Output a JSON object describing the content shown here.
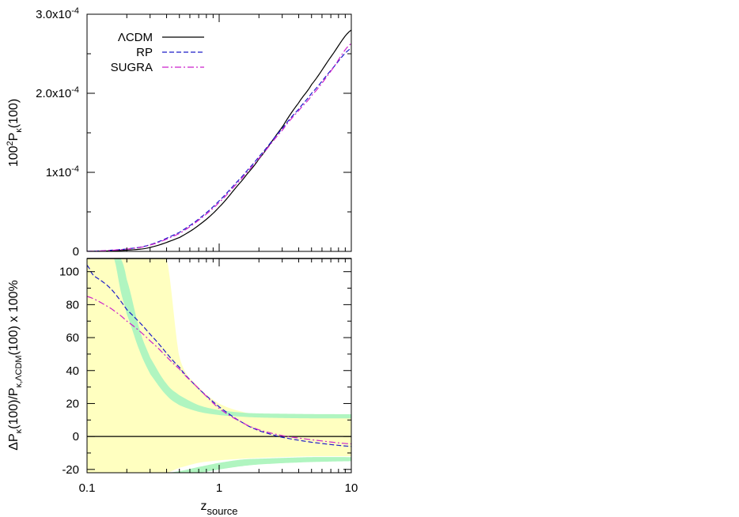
{
  "chart_data": [
    {
      "type": "line",
      "panel": "top",
      "xscale": "log",
      "xlim": [
        0.1,
        10
      ],
      "ylim": [
        0,
        0.0003
      ],
      "ylabel": {
        "base": "100",
        "sup": "2",
        "main": "P",
        "sub": "κ",
        "tail": "(100)"
      },
      "yticks": [
        {
          "value": 0,
          "label": "0"
        },
        {
          "value": 0.0001,
          "label": "1x10",
          "exp": "-4"
        },
        {
          "value": 0.0002,
          "label": "2.0x10",
          "exp": "-4"
        },
        {
          "value": 0.0003,
          "label": "3.0x10",
          "exp": "-4"
        }
      ],
      "legend_position": "top-left",
      "series": [
        {
          "name": "ΛCDM",
          "color": "#000000",
          "dash": "solid",
          "x": [
            0.1,
            0.2,
            0.3,
            0.5,
            0.7,
            1.0,
            1.5,
            2.0,
            3.0,
            4.0,
            5.0,
            7.0,
            10.0
          ],
          "y": [
            0.0,
            1.5e-06,
            5e-06,
            1.75e-05,
            3.3e-05,
            5.6e-05,
            9e-05,
            0.000117,
            0.000157,
            0.000188,
            0.000211,
            0.000246,
            0.00028
          ]
        },
        {
          "name": "RP",
          "color": "#1c1cc8",
          "dash": "dashed",
          "x": [
            0.1,
            0.2,
            0.3,
            0.5,
            0.7,
            1.0,
            1.5,
            2.0,
            3.0,
            4.0,
            5.0,
            7.0,
            10.0
          ],
          "y": [
            0.0,
            3e-06,
            8.5e-06,
            2.4e-05,
            4.1e-05,
            6.4e-05,
            9.5e-05,
            0.00012,
            0.000155,
            0.00018,
            0.0002,
            0.000229,
            0.000257
          ]
        },
        {
          "name": "SUGRA",
          "color": "#cc22cc",
          "dash": "dashdot",
          "x": [
            0.1,
            0.2,
            0.3,
            0.5,
            0.7,
            1.0,
            1.5,
            2.0,
            3.0,
            4.0,
            5.0,
            7.0,
            10.0
          ],
          "y": [
            0.0,
            2.8e-06,
            8e-06,
            2.25e-05,
            3.95e-05,
            6.2e-05,
            9.3e-05,
            0.000118,
            0.000153,
            0.000178,
            0.000197,
            0.000228,
            0.000263
          ]
        }
      ]
    },
    {
      "type": "line",
      "panel": "bottom",
      "xscale": "log",
      "xlim": [
        0.1,
        10
      ],
      "ylim": [
        -22,
        108
      ],
      "xlabel": {
        "main": "z",
        "sub": "source"
      },
      "ylabel": {
        "pre": "ΔP",
        "sub1": "κ",
        "mid": "(100)/P",
        "sub2": "κ,ΛCDM",
        "tail": "(100) x 100%"
      },
      "xticks": [
        {
          "value": 0.1,
          "label": "0.1"
        },
        {
          "value": 1,
          "label": "1"
        },
        {
          "value": 10,
          "label": "10"
        }
      ],
      "yticks": [
        {
          "value": -20,
          "label": "-20"
        },
        {
          "value": 0,
          "label": "0"
        },
        {
          "value": 20,
          "label": "20"
        },
        {
          "value": 40,
          "label": "40"
        },
        {
          "value": 60,
          "label": "60"
        },
        {
          "value": 80,
          "label": "80"
        },
        {
          "value": 100,
          "label": "100"
        }
      ],
      "yellow_band": {
        "color": "#ffffc0",
        "x": [
          0.1,
          0.2,
          0.3,
          0.4,
          0.5,
          0.7,
          1.0,
          1.5,
          2.0,
          3.0,
          5.0,
          10.0
        ],
        "upper": [
          108,
          108,
          108,
          108,
          48,
          30,
          20,
          15,
          13.5,
          12.5,
          12,
          12
        ],
        "lower": [
          -22,
          -22,
          -22,
          -22,
          -19,
          -16,
          -14.5,
          -13.5,
          -13,
          -12.5,
          -12,
          -12
        ]
      },
      "green_band": {
        "color": "#b0f5c0",
        "x": [
          0.16,
          0.18,
          0.2,
          0.25,
          0.3,
          0.4,
          0.5,
          0.7,
          1.0,
          1.5,
          2.0,
          3.0,
          5.0,
          10.0
        ],
        "upper_outer": [
          108,
          108,
          95,
          65,
          48,
          32,
          25,
          19,
          16,
          14.5,
          14,
          13.8,
          13.6,
          13.5
        ],
        "upper_inner": [
          108,
          88,
          74,
          52,
          38,
          25,
          19,
          15,
          13,
          12,
          11.5,
          11.2,
          11,
          11
        ],
        "lower_inner": [
          -22,
          -22,
          -22,
          -22,
          -22,
          -22,
          -21,
          -18.5,
          -16,
          -14,
          -13.5,
          -13,
          -12.5,
          -12.5
        ],
        "lower_outer": [
          -22,
          -22,
          -22,
          -22,
          -22,
          -22,
          -22,
          -22,
          -20,
          -18,
          -17,
          -16.2,
          -15.5,
          -15
        ]
      },
      "series": [
        {
          "name": "ΛCDM",
          "color": "#000000",
          "dash": "solid",
          "x": [
            0.1,
            10.0
          ],
          "y": [
            0,
            0
          ]
        },
        {
          "name": "RP",
          "color": "#1c1cc8",
          "dash": "dashed",
          "x": [
            0.1,
            0.11,
            0.15,
            0.2,
            0.3,
            0.5,
            0.7,
            1.0,
            1.5,
            2.0,
            3.0,
            5.0,
            10.0
          ],
          "y": [
            104,
            98,
            90,
            77,
            62,
            42,
            29,
            18,
            8.5,
            3.5,
            -0.5,
            -3.5,
            -6
          ]
        },
        {
          "name": "SUGRA",
          "color": "#cc22cc",
          "dash": "dashdot",
          "x": [
            0.1,
            0.15,
            0.2,
            0.3,
            0.5,
            0.7,
            1.0,
            1.5,
            2.0,
            3.0,
            5.0,
            10.0
          ],
          "y": [
            85,
            78,
            70,
            58,
            41,
            29,
            17,
            8.5,
            4,
            0.5,
            -2.0,
            -4.5
          ]
        }
      ]
    }
  ]
}
